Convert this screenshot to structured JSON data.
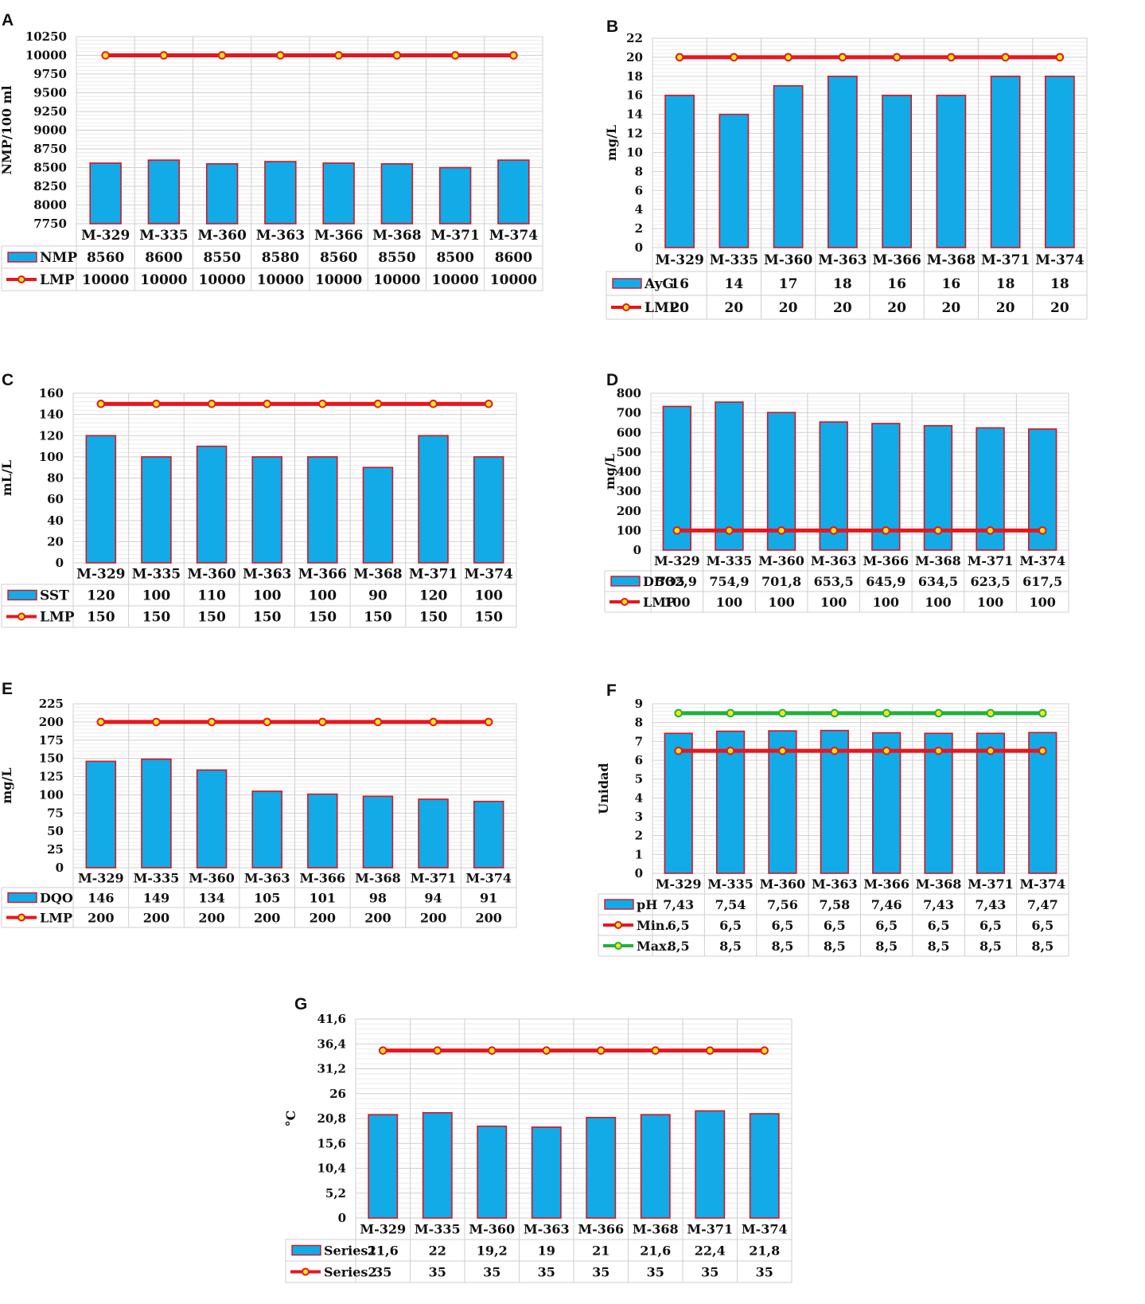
{
  "chart_data": [
    {
      "panel": "A",
      "type": "bar",
      "categories": [
        "M-329",
        "M-335",
        "M-360",
        "M-363",
        "M-366",
        "M-368",
        "M-371",
        "M-374"
      ],
      "ylabel": "NMP/100 ml",
      "ylim": [
        7750,
        10250
      ],
      "yticks": [
        "7750",
        "8000",
        "8250",
        "8500",
        "8750",
        "9000",
        "9250",
        "9500",
        "9750",
        "10000",
        "10250"
      ],
      "yticks_v": [
        7750,
        8000,
        8250,
        8500,
        8750,
        9000,
        9250,
        9500,
        9750,
        10000,
        10250
      ],
      "bar": {
        "name": "NMP",
        "values": [
          8560,
          8600,
          8550,
          8580,
          8560,
          8550,
          8500,
          8600
        ],
        "labels": [
          "8560",
          "8600",
          "8550",
          "8580",
          "8560",
          "8550",
          "8500",
          "8600"
        ]
      },
      "lines": [
        {
          "name": "LMP",
          "color": "#e8161c",
          "values": [
            10000,
            10000,
            10000,
            10000,
            10000,
            10000,
            10000,
            10000
          ],
          "labels": [
            "10000",
            "10000",
            "10000",
            "10000",
            "10000",
            "10000",
            "10000",
            "10000"
          ]
        }
      ],
      "grid": true,
      "legend": "table"
    },
    {
      "panel": "B",
      "type": "bar",
      "categories": [
        "M-329",
        "M-335",
        "M-360",
        "M-363",
        "M-366",
        "M-368",
        "M-371",
        "M-374"
      ],
      "ylabel": "mg/L",
      "ylim": [
        0,
        22
      ],
      "yticks": [
        "0",
        "2",
        "4",
        "6",
        "8",
        "10",
        "12",
        "14",
        "16",
        "18",
        "20",
        "22"
      ],
      "yticks_v": [
        0,
        2,
        4,
        6,
        8,
        10,
        12,
        14,
        16,
        18,
        20,
        22
      ],
      "bar": {
        "name": "AyG",
        "values": [
          16,
          14,
          17,
          18,
          16,
          16,
          18,
          18
        ],
        "labels": [
          "16",
          "14",
          "17",
          "18",
          "16",
          "16",
          "18",
          "18"
        ]
      },
      "lines": [
        {
          "name": "LMP",
          "color": "#e8161c",
          "values": [
            20,
            20,
            20,
            20,
            20,
            20,
            20,
            20
          ],
          "labels": [
            "20",
            "20",
            "20",
            "20",
            "20",
            "20",
            "20",
            "20"
          ]
        }
      ],
      "grid": true,
      "legend": "table"
    },
    {
      "panel": "C",
      "type": "bar",
      "categories": [
        "M-329",
        "M-335",
        "M-360",
        "M-363",
        "M-366",
        "M-368",
        "M-371",
        "M-374"
      ],
      "ylabel": "mL/L",
      "ylim": [
        0,
        160
      ],
      "yticks": [
        "0",
        "20",
        "40",
        "60",
        "80",
        "100",
        "120",
        "140",
        "160"
      ],
      "yticks_v": [
        0,
        20,
        40,
        60,
        80,
        100,
        120,
        140,
        160
      ],
      "bar": {
        "name": "SST",
        "values": [
          120,
          100,
          110,
          100,
          100,
          90,
          120,
          100
        ],
        "labels": [
          "120",
          "100",
          "110",
          "100",
          "100",
          "90",
          "120",
          "100"
        ]
      },
      "lines": [
        {
          "name": "LMP",
          "color": "#e8161c",
          "values": [
            150,
            150,
            150,
            150,
            150,
            150,
            150,
            150
          ],
          "labels": [
            "150",
            "150",
            "150",
            "150",
            "150",
            "150",
            "150",
            "150"
          ]
        }
      ],
      "grid": true,
      "legend": "table"
    },
    {
      "panel": "D",
      "type": "bar",
      "categories": [
        "M-329",
        "M-335",
        "M-360",
        "M-363",
        "M-366",
        "M-368",
        "M-371",
        "M-374"
      ],
      "ylabel": "mg/L",
      "ylim": [
        0,
        800
      ],
      "yticks": [
        "0",
        "100",
        "200",
        "300",
        "400",
        "500",
        "600",
        "700",
        "800"
      ],
      "yticks_v": [
        0,
        100,
        200,
        300,
        400,
        500,
        600,
        700,
        800
      ],
      "bar": {
        "name": "DBO5",
        "values": [
          732.9,
          754.9,
          701.8,
          653.5,
          645.9,
          634.5,
          623.5,
          617.5
        ],
        "labels": [
          "732,9",
          "754,9",
          "701,8",
          "653,5",
          "645,9",
          "634,5",
          "623,5",
          "617,5"
        ]
      },
      "lines": [
        {
          "name": "LMP",
          "color": "#e8161c",
          "values": [
            100,
            100,
            100,
            100,
            100,
            100,
            100,
            100
          ],
          "labels": [
            "100",
            "100",
            "100",
            "100",
            "100",
            "100",
            "100",
            "100"
          ]
        }
      ],
      "grid": true,
      "legend": "table"
    },
    {
      "panel": "E",
      "type": "bar",
      "categories": [
        "M-329",
        "M-335",
        "M-360",
        "M-363",
        "M-366",
        "M-368",
        "M-371",
        "M-374"
      ],
      "ylabel": "mg/L",
      "ylim": [
        0,
        225
      ],
      "yticks": [
        "0",
        "25",
        "50",
        "75",
        "100",
        "125",
        "150",
        "175",
        "200",
        "225"
      ],
      "yticks_v": [
        0,
        25,
        50,
        75,
        100,
        125,
        150,
        175,
        200,
        225
      ],
      "bar": {
        "name": "DQO",
        "values": [
          146,
          149,
          134,
          105,
          101,
          98,
          94,
          91
        ],
        "labels": [
          "146",
          "149",
          "134",
          "105",
          "101",
          "98",
          "94",
          "91"
        ]
      },
      "lines": [
        {
          "name": "LMP",
          "color": "#e8161c",
          "values": [
            200,
            200,
            200,
            200,
            200,
            200,
            200,
            200
          ],
          "labels": [
            "200",
            "200",
            "200",
            "200",
            "200",
            "200",
            "200",
            "200"
          ]
        }
      ],
      "grid": true,
      "legend": "table"
    },
    {
      "panel": "F",
      "type": "bar",
      "categories": [
        "M-329",
        "M-335",
        "M-360",
        "M-363",
        "M-366",
        "M-368",
        "M-371",
        "M-374"
      ],
      "ylabel": "Unidad",
      "ylim": [
        0,
        9
      ],
      "yticks": [
        "0",
        "1",
        "2",
        "3",
        "4",
        "5",
        "6",
        "7",
        "8",
        "9"
      ],
      "yticks_v": [
        0,
        1,
        2,
        3,
        4,
        5,
        6,
        7,
        8,
        9
      ],
      "bar": {
        "name": "pH",
        "values": [
          7.43,
          7.54,
          7.56,
          7.58,
          7.46,
          7.43,
          7.43,
          7.47
        ],
        "labels": [
          "7,43",
          "7,54",
          "7,56",
          "7,58",
          "7,46",
          "7,43",
          "7,43",
          "7,47"
        ]
      },
      "lines": [
        {
          "name": "Min.",
          "color": "#e8161c",
          "values": [
            6.5,
            6.5,
            6.5,
            6.5,
            6.5,
            6.5,
            6.5,
            6.5
          ],
          "labels": [
            "6,5",
            "6,5",
            "6,5",
            "6,5",
            "6,5",
            "6,5",
            "6,5",
            "6,5"
          ]
        },
        {
          "name": "Max.",
          "color": "#1fb23a",
          "values": [
            8.5,
            8.5,
            8.5,
            8.5,
            8.5,
            8.5,
            8.5,
            8.5
          ],
          "labels": [
            "8,5",
            "8,5",
            "8,5",
            "8,5",
            "8,5",
            "8,5",
            "8,5",
            "8,5"
          ]
        }
      ],
      "grid": true,
      "legend": "table"
    },
    {
      "panel": "G",
      "type": "bar",
      "categories": [
        "M-329",
        "M-335",
        "M-360",
        "M-363",
        "M-366",
        "M-368",
        "M-371",
        "M-374"
      ],
      "ylabel": "°C",
      "ylim": [
        0,
        41.6
      ],
      "yticks": [
        "0",
        "5,2",
        "10,4",
        "15,6",
        "20,8",
        "26",
        "31,2",
        "36,4",
        "41,6"
      ],
      "yticks_v": [
        0,
        5.2,
        10.4,
        15.6,
        20.8,
        26,
        31.2,
        36.4,
        41.6
      ],
      "bar": {
        "name": "Series1",
        "values": [
          21.6,
          22,
          19.2,
          19,
          21,
          21.6,
          22.4,
          21.8
        ],
        "labels": [
          "21,6",
          "22",
          "19,2",
          "19",
          "21",
          "21,6",
          "22,4",
          "21,8"
        ]
      },
      "lines": [
        {
          "name": "Series2",
          "color": "#e8161c",
          "values": [
            35,
            35,
            35,
            35,
            35,
            35,
            35,
            35
          ],
          "labels": [
            "35",
            "35",
            "35",
            "35",
            "35",
            "35",
            "35",
            "35"
          ]
        }
      ],
      "grid": true,
      "legend": "table"
    }
  ],
  "colors": {
    "bar_fill": "#12abe8",
    "bar_edge": "#d8141c",
    "grid_major": "#cfcfcf",
    "grid_minor": "#ececec",
    "marker_fill": "#f7e61b"
  }
}
